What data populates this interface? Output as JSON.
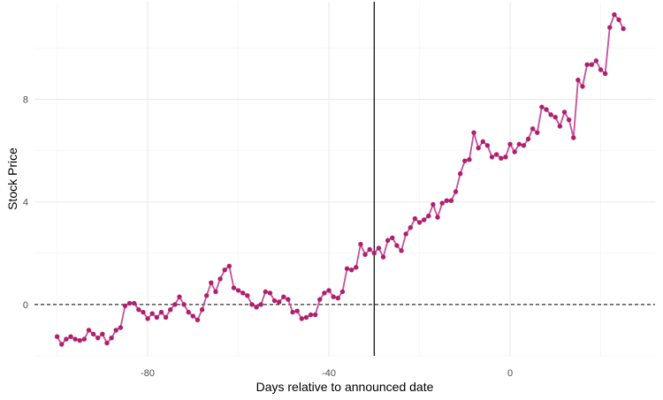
{
  "chart_data": {
    "type": "line",
    "title": "",
    "xlabel": "Days relative to announced date",
    "ylabel": "Stock Price",
    "xlim": [
      -105,
      32
    ],
    "ylim": [
      -2.0,
      11.8
    ],
    "x_ticks": [
      -80,
      -40,
      0
    ],
    "x_tick_labels": [
      "-80",
      "-40",
      "0"
    ],
    "y_ticks": [
      0,
      4,
      8
    ],
    "y_tick_labels": [
      "0",
      "4",
      "8"
    ],
    "grid": true,
    "legend": "none",
    "reference_lines": {
      "vertical_x": -30,
      "horizontal_y": 0
    },
    "colors": {
      "line": "#c6509a",
      "points": "#b01f6e",
      "grid_major": "#ebebeb",
      "grid_minor": "#f5f5f5",
      "reference": "#000000"
    },
    "series": [
      {
        "x": [
          -100,
          -99,
          -98,
          -97,
          -96,
          -95,
          -94,
          -93,
          -92,
          -91,
          -90,
          -89,
          -88,
          -87,
          -86,
          -85,
          -84,
          -83,
          -82,
          -81,
          -80,
          -79,
          -78,
          -77,
          -76,
          -75,
          -74,
          -73,
          -72,
          -71,
          -70,
          -69,
          -68,
          -67,
          -66,
          -65,
          -64,
          -63,
          -62,
          -61,
          -60,
          -59,
          -58,
          -57,
          -56,
          -55,
          -54,
          -53,
          -52,
          -51,
          -50,
          -49,
          -48,
          -47,
          -46,
          -45,
          -44,
          -43,
          -42,
          -41,
          -40,
          -39,
          -38,
          -37,
          -36,
          -35,
          -34,
          -33,
          -32,
          -31,
          -30,
          -29,
          -28,
          -27,
          -26,
          -25,
          -24,
          -23,
          -22,
          -21,
          -20,
          -19,
          -18,
          -17,
          -16,
          -15,
          -14,
          -13,
          -12,
          -11,
          -10,
          -9,
          -8,
          -7,
          -6,
          -5,
          -4,
          -3,
          -2,
          -1,
          0,
          1,
          2,
          3,
          4,
          5,
          6,
          7,
          8,
          9,
          10,
          11,
          12,
          13,
          14,
          15,
          16,
          17,
          18,
          19,
          20,
          21,
          22,
          23,
          24,
          25
        ],
        "values": [
          -1.25,
          -1.55,
          -1.35,
          -1.25,
          -1.35,
          -1.4,
          -1.35,
          -1.0,
          -1.15,
          -1.3,
          -1.15,
          -1.5,
          -1.3,
          -1.0,
          -0.9,
          -0.05,
          0.05,
          0.05,
          -0.2,
          -0.3,
          -0.55,
          -0.35,
          -0.5,
          -0.3,
          -0.5,
          -0.2,
          0.0,
          0.3,
          0.0,
          -0.3,
          -0.45,
          -0.6,
          -0.2,
          0.35,
          0.85,
          0.5,
          1.0,
          1.35,
          1.5,
          0.65,
          0.55,
          0.45,
          0.35,
          0.0,
          -0.1,
          0.0,
          0.5,
          0.45,
          0.15,
          0.1,
          0.3,
          0.2,
          -0.3,
          -0.25,
          -0.55,
          -0.5,
          -0.4,
          -0.4,
          0.2,
          0.45,
          0.55,
          0.3,
          0.25,
          0.5,
          1.4,
          1.35,
          1.45,
          2.35,
          1.95,
          2.15,
          2.0,
          2.2,
          1.85,
          2.5,
          2.6,
          2.3,
          2.1,
          2.75,
          3.0,
          3.35,
          3.2,
          3.3,
          3.45,
          3.9,
          3.4,
          3.95,
          4.05,
          4.05,
          4.4,
          5.1,
          5.6,
          5.65,
          6.7,
          6.1,
          6.35,
          6.2,
          5.75,
          5.85,
          5.7,
          5.75,
          6.25,
          5.95,
          6.25,
          6.2,
          6.45,
          6.85,
          6.7,
          7.7,
          7.6,
          7.4,
          7.3,
          6.95,
          7.5,
          7.2,
          6.5,
          8.75,
          8.5,
          9.35,
          9.35,
          9.5,
          9.15,
          9.0,
          10.8,
          11.3,
          11.1,
          10.75
        ]
      }
    ]
  }
}
